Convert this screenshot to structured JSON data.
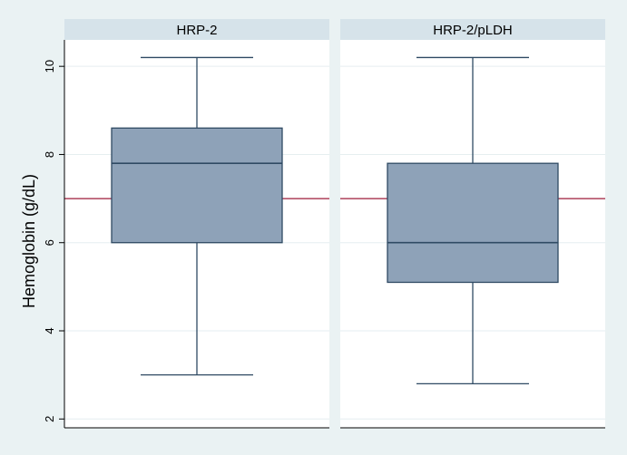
{
  "chart_data": {
    "type": "box",
    "ylabel": "Hemoglobin (g/dL)",
    "ylim": [
      1.8,
      10.6
    ],
    "yticks": [
      2,
      4,
      6,
      8,
      10
    ],
    "reference_line": 7,
    "grid": true,
    "colors": {
      "box_fill": "#8ea2b8",
      "box_stroke": "#2f4a63",
      "reference_line": "#9e1b3a",
      "panel_header": "#d6e3ea",
      "background": "#eaf2f3"
    },
    "panels": [
      {
        "title": "HRP-2",
        "whisker_low": 3.0,
        "q1": 6.0,
        "median": 7.8,
        "q3": 8.6,
        "whisker_high": 10.2
      },
      {
        "title": "HRP-2/pLDH",
        "whisker_low": 2.8,
        "q1": 5.1,
        "median": 6.0,
        "q3": 7.8,
        "whisker_high": 10.2
      }
    ]
  }
}
